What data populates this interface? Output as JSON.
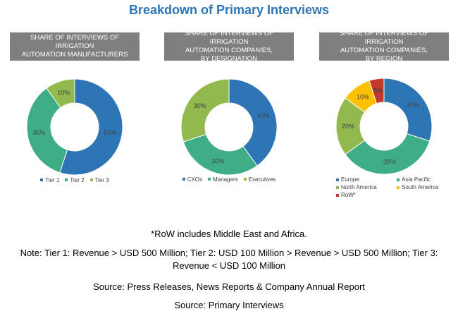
{
  "title": "Breakdown of Primary Interviews",
  "colors": {
    "blue": "#2E75B6",
    "teal": "#3FAE86",
    "lime": "#92B94D",
    "orange": "#FFC000",
    "red": "#C0392B",
    "header_bg": "#7F7F7F"
  },
  "chart_data": [
    {
      "type": "pie",
      "title": "SHARE OF INTERVIEWS OF IRRIGATION\nAUTOMATION MANUFACTURERS",
      "categories": [
        "Tier 1",
        "Tier 2",
        "Tier 3"
      ],
      "values": [
        55,
        35,
        10
      ],
      "labels": [
        "55%",
        "35%",
        "10%"
      ],
      "colors": [
        "#2E75B6",
        "#3FAE86",
        "#92B94D"
      ]
    },
    {
      "type": "pie",
      "title": "SHARE OF INTERVIEWS OF IRRIGATION\nAUTOMATION COMPANIES,\nBY DESIGNATION",
      "categories": [
        "CXOs",
        "Managers",
        "Executives"
      ],
      "values": [
        40,
        30,
        30
      ],
      "labels": [
        "40%",
        "30%",
        "30%"
      ],
      "colors": [
        "#2E75B6",
        "#3FAE86",
        "#92B94D"
      ]
    },
    {
      "type": "pie",
      "title": "SHARE OF INTERVIEWS OF IRRIGATION\nAUTOMATION COMPANIES,\nBY REGION",
      "categories": [
        "Europe",
        "Asia Pacific",
        "North America",
        "South America",
        "RoW*"
      ],
      "values": [
        30,
        35,
        20,
        10,
        5
      ],
      "labels": [
        "30%",
        "35%",
        "20%",
        "10%",
        "5%"
      ],
      "colors": [
        "#2E75B6",
        "#3FAE86",
        "#92B94D",
        "#FFC000",
        "#C0392B"
      ]
    }
  ],
  "footnotes": {
    "row_note": "*RoW includes Middle East and Africa.",
    "tier_note": "Note: Tier 1: Revenue > USD 500 Million; Tier 2: USD 100 Million > Revenue > USD 500 Million; Tier 3: Revenue < USD 100 Million",
    "source_secondary": "Source: Press Releases, News Reports & Company Annual Report",
    "source_primary": "Source: Primary Interviews"
  }
}
